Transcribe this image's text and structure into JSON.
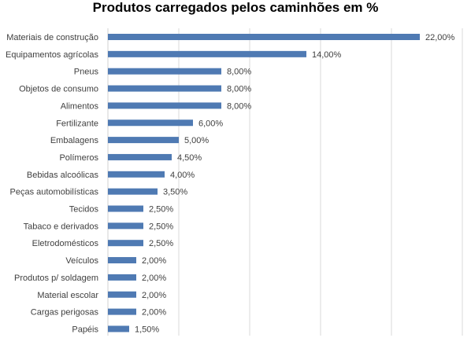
{
  "chart_data": {
    "type": "bar",
    "orientation": "horizontal",
    "title": "Produtos carregados pelos caminhões em %",
    "xlabel": "",
    "ylabel": "",
    "xlim": [
      0,
      25
    ],
    "grid": "vertical",
    "legend": "none",
    "bar_color": "#4F7AB3",
    "grid_color": "#D9D9D9",
    "categories": [
      "Materiais de construção",
      "Equipamentos agrícolas",
      "Pneus",
      "Objetos de consumo",
      "Alimentos",
      "Fertilizante",
      "Embalagens",
      "Polímeros",
      "Bebidas alcoólicas",
      "Peças automobilísticas",
      "Tecidos",
      "Tabaco e derivados",
      "Eletrodomésticos",
      "Veículos",
      "Produtos p/ soldagem",
      "Material escolar",
      "Cargas perigosas",
      "Papéis"
    ],
    "values": [
      22,
      14,
      8,
      8,
      8,
      6,
      5,
      4.5,
      4,
      3.5,
      2.5,
      2.5,
      2.5,
      2,
      2,
      2,
      2,
      1.5
    ],
    "value_labels": [
      "22,00%",
      "14,00%",
      "8,00%",
      "8,00%",
      "8,00%",
      "6,00%",
      "5,00%",
      "4,50%",
      "4,00%",
      "3,50%",
      "2,50%",
      "2,50%",
      "2,50%",
      "2,00%",
      "2,00%",
      "2,00%",
      "2,00%",
      "1,50%"
    ]
  }
}
